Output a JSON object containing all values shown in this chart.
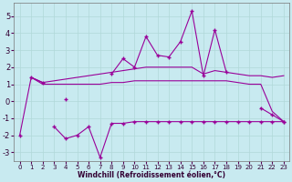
{
  "xlabel": "Windchill (Refroidissement éolien,°C)",
  "x": [
    0,
    1,
    2,
    3,
    4,
    5,
    6,
    7,
    8,
    9,
    10,
    11,
    12,
    13,
    14,
    15,
    16,
    17,
    18,
    19,
    20,
    21,
    22,
    23
  ],
  "y_top": [
    -2.0,
    1.4,
    1.1,
    null,
    0.1,
    null,
    null,
    null,
    1.6,
    2.5,
    2.0,
    3.8,
    2.7,
    2.6,
    3.5,
    5.3,
    1.5,
    4.2,
    1.7,
    null,
    null,
    -0.4,
    -0.8,
    -1.2
  ],
  "y_hi": [
    null,
    1.4,
    1.1,
    1.2,
    1.3,
    1.4,
    1.5,
    1.6,
    1.7,
    1.8,
    1.9,
    2.0,
    2.0,
    2.0,
    2.0,
    2.0,
    1.6,
    1.8,
    1.7,
    1.6,
    1.5,
    1.5,
    1.4,
    1.5
  ],
  "y_lo": [
    null,
    1.4,
    1.0,
    1.0,
    1.0,
    1.0,
    1.0,
    1.0,
    1.1,
    1.1,
    1.2,
    1.2,
    1.2,
    1.2,
    1.2,
    1.2,
    1.2,
    1.2,
    1.2,
    1.1,
    1.0,
    1.0,
    -0.6,
    -1.2
  ],
  "y_bot": [
    null,
    null,
    null,
    -1.5,
    -2.2,
    -2.0,
    -1.5,
    -3.3,
    -1.3,
    -1.3,
    -1.2,
    -1.2,
    -1.2,
    -1.2,
    -1.2,
    -1.2,
    -1.2,
    -1.2,
    -1.2,
    -1.2,
    -1.2,
    -1.2,
    -1.2,
    -1.2
  ],
  "line_color": "#990099",
  "bg_color": "#c8eaf0",
  "grid_color": "#b0d8d8",
  "ylim": [
    -3.5,
    5.8
  ],
  "xlim": [
    -0.5,
    23.5
  ],
  "yticks": [
    -3,
    -2,
    -1,
    0,
    1,
    2,
    3,
    4,
    5
  ],
  "xticks": [
    0,
    1,
    2,
    3,
    4,
    5,
    6,
    7,
    8,
    9,
    10,
    11,
    12,
    13,
    14,
    15,
    16,
    17,
    18,
    19,
    20,
    21,
    22,
    23
  ]
}
